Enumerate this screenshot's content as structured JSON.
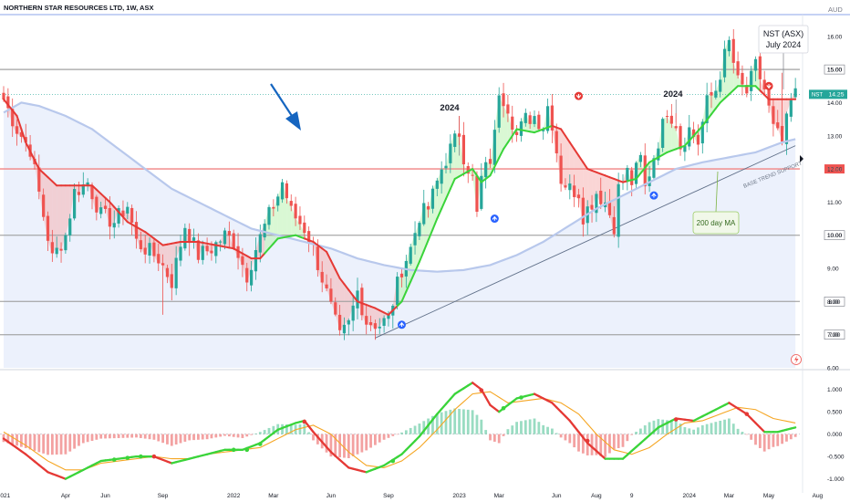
{
  "header": {
    "symbol_line": "NORTHERN STAR RESOURCES LTD, 1W, ASX",
    "currency": "AUD"
  },
  "price_axis": {
    "ticks": [
      "16.00",
      "15.00",
      "14.00",
      "13.00",
      "12.00",
      "11.00",
      "10.00",
      "9.00",
      "8.00",
      "7.00",
      "6.00"
    ],
    "last_price_tag": {
      "label": "NST",
      "value": "14.25",
      "price": 14.25
    }
  },
  "levels": [
    {
      "price": 15.0,
      "label": "15.00",
      "kind": "resistance"
    },
    {
      "price": 12.0,
      "label": "12.00",
      "kind": "support-red"
    },
    {
      "price": 10.0,
      "label": "10.00",
      "kind": "resistance"
    },
    {
      "price": 8.0,
      "label": "8.00",
      "kind": "resistance"
    },
    {
      "price": 7.0,
      "label": "7.00",
      "kind": "resistance"
    }
  ],
  "time_axis": {
    "ticks": [
      {
        "label": "2021",
        "t": 0
      },
      {
        "label": "Apr",
        "t": 14
      },
      {
        "label": "Jun",
        "t": 23
      },
      {
        "label": "Sep",
        "t": 36
      },
      {
        "label": "2022",
        "t": 52
      },
      {
        "label": "Mar",
        "t": 61
      },
      {
        "label": "Jun",
        "t": 74
      },
      {
        "label": "Sep",
        "t": 87
      },
      {
        "label": "2023",
        "t": 103
      },
      {
        "label": "Mar",
        "t": 112
      },
      {
        "label": "Jun",
        "t": 125
      },
      {
        "label": "Aug",
        "t": 134
      },
      {
        "label": "9",
        "t": 142
      },
      {
        "label": "2024",
        "t": 155
      },
      {
        "label": "Mar",
        "t": 164
      },
      {
        "label": "May",
        "t": 173
      },
      {
        "label": "Aug",
        "t": 184
      }
    ]
  },
  "annotations": {
    "title_box": {
      "line1": "NST (ASX)",
      "line2": "July 2024"
    },
    "year_label_1": "2024",
    "year_label_2": "2024",
    "ma_callout": "200 day MA",
    "trend_label": "BASE TREND SUPPORT"
  },
  "oscillator": {
    "ticks": [
      "1.000",
      "0.500",
      "0.000",
      "-0.500",
      "-1.000"
    ]
  },
  "colors": {
    "up": "#26a69a",
    "down": "#ef5350",
    "ma_fast_down": "#e53935",
    "ma_fast_up": "#3ad43a",
    "ma_slow": "#b8c8ec",
    "level_line": "#9e9e9e",
    "support_line": "#f28b8b",
    "osc_fast": "#e53935",
    "osc_signal": "#f5a623",
    "arrow_blue": "#1565c0"
  },
  "chart_data": {
    "type": "candlestick",
    "interval": "1W",
    "ylim": [
      6.0,
      16.6
    ],
    "osc_ylim": [
      -1.15,
      1.3
    ],
    "anchors": [
      [
        0,
        14.1
      ],
      [
        3,
        13.2
      ],
      [
        6,
        12.6
      ],
      [
        9,
        10.6
      ],
      [
        11,
        9.3
      ],
      [
        14,
        10.0
      ],
      [
        16,
        11.3
      ],
      [
        19,
        11.6
      ],
      [
        22,
        10.6
      ],
      [
        25,
        10.4
      ],
      [
        28,
        10.9
      ],
      [
        30,
        9.8
      ],
      [
        33,
        9.5
      ],
      [
        35,
        9.3
      ],
      [
        38,
        8.6
      ],
      [
        41,
        10.3
      ],
      [
        44,
        9.4
      ],
      [
        47,
        9.6
      ],
      [
        50,
        10.0
      ],
      [
        52,
        9.8
      ],
      [
        55,
        8.8
      ],
      [
        57,
        9.6
      ],
      [
        60,
        10.6
      ],
      [
        62,
        11.2
      ],
      [
        63,
        11.6
      ],
      [
        65,
        10.7
      ],
      [
        68,
        10.2
      ],
      [
        70,
        9.6
      ],
      [
        72,
        8.7
      ],
      [
        74,
        7.8
      ],
      [
        76,
        6.9
      ],
      [
        78,
        7.3
      ],
      [
        80,
        8.3
      ],
      [
        82,
        7.4
      ],
      [
        85,
        7.3
      ],
      [
        87,
        7.5
      ],
      [
        89,
        8.5
      ],
      [
        90,
        9.0
      ],
      [
        92,
        9.6
      ],
      [
        94,
        10.6
      ],
      [
        96,
        10.8
      ],
      [
        99,
        12.0
      ],
      [
        101,
        12.6
      ],
      [
        103,
        13.1
      ],
      [
        104,
        12.4
      ],
      [
        106,
        11.7
      ],
      [
        107,
        10.6
      ],
      [
        108,
        11.7
      ],
      [
        110,
        12.3
      ],
      [
        111,
        13.0
      ],
      [
        112,
        14.4
      ],
      [
        114,
        13.9
      ],
      [
        116,
        13.0
      ],
      [
        118,
        13.5
      ],
      [
        120,
        13.6
      ],
      [
        122,
        13.3
      ],
      [
        123,
        13.9
      ],
      [
        124,
        13.4
      ],
      [
        126,
        11.7
      ],
      [
        128,
        11.4
      ],
      [
        130,
        11.3
      ],
      [
        131,
        10.6
      ],
      [
        133,
        11.0
      ],
      [
        134,
        11.3
      ],
      [
        136,
        11.0
      ],
      [
        138,
        10.3
      ],
      [
        139,
        11.4
      ],
      [
        141,
        11.9
      ],
      [
        142,
        11.6
      ],
      [
        144,
        12.3
      ],
      [
        145,
        11.4
      ],
      [
        147,
        12.4
      ],
      [
        149,
        13.3
      ],
      [
        150,
        13.8
      ],
      [
        152,
        13.4
      ],
      [
        153,
        12.7
      ],
      [
        155,
        13.2
      ],
      [
        157,
        12.8
      ],
      [
        159,
        14.0
      ],
      [
        161,
        14.4
      ],
      [
        163,
        15.4
      ],
      [
        164,
        15.8
      ],
      [
        166,
        14.6
      ],
      [
        168,
        14.3
      ],
      [
        170,
        15.1
      ],
      [
        172,
        14.4
      ],
      [
        174,
        13.2
      ],
      [
        176,
        12.8
      ],
      [
        178,
        14.0
      ],
      [
        179,
        14.25
      ]
    ],
    "ma_fast": [
      [
        0,
        14.1
      ],
      [
        3,
        13.6
      ],
      [
        5,
        12.8
      ],
      [
        8,
        12.0
      ],
      [
        12,
        11.5
      ],
      [
        16,
        11.5
      ],
      [
        20,
        11.5
      ],
      [
        24,
        11.0
      ],
      [
        28,
        10.4
      ],
      [
        32,
        10.1
      ],
      [
        36,
        9.7
      ],
      [
        40,
        9.8
      ],
      [
        44,
        9.8
      ],
      [
        48,
        9.7
      ],
      [
        52,
        9.6
      ],
      [
        56,
        9.3
      ],
      [
        58,
        9.3
      ],
      [
        62,
        9.9
      ],
      [
        66,
        10.0
      ],
      [
        70,
        9.8
      ],
      [
        73,
        9.5
      ],
      [
        76,
        8.7
      ],
      [
        80,
        8.0
      ],
      [
        84,
        7.8
      ],
      [
        87,
        7.6
      ],
      [
        90,
        8.0
      ],
      [
        94,
        9.2
      ],
      [
        98,
        10.5
      ],
      [
        102,
        11.7
      ],
      [
        106,
        12.0
      ],
      [
        108,
        11.6
      ],
      [
        110,
        11.8
      ],
      [
        113,
        12.6
      ],
      [
        116,
        13.2
      ],
      [
        120,
        13.1
      ],
      [
        124,
        13.3
      ],
      [
        126,
        13.2
      ],
      [
        129,
        12.6
      ],
      [
        132,
        12.0
      ],
      [
        136,
        11.8
      ],
      [
        140,
        11.6
      ],
      [
        143,
        11.7
      ],
      [
        146,
        12.2
      ],
      [
        150,
        12.5
      ],
      [
        154,
        12.7
      ],
      [
        158,
        13.3
      ],
      [
        162,
        14.0
      ],
      [
        166,
        14.5
      ],
      [
        170,
        14.5
      ],
      [
        173,
        14.1
      ],
      [
        176,
        14.1
      ],
      [
        179,
        14.1
      ]
    ],
    "ma_fast_down_ranges": [
      [
        0,
        58
      ],
      [
        68,
        88
      ],
      [
        124,
        140
      ],
      [
        171,
        179
      ]
    ],
    "ma_slow": [
      [
        0,
        13.7
      ],
      [
        4,
        14.0
      ],
      [
        8,
        13.9
      ],
      [
        14,
        13.6
      ],
      [
        20,
        13.2
      ],
      [
        26,
        12.6
      ],
      [
        32,
        12.0
      ],
      [
        38,
        11.4
      ],
      [
        44,
        11.0
      ],
      [
        50,
        10.6
      ],
      [
        56,
        10.2
      ],
      [
        62,
        10.0
      ],
      [
        68,
        9.8
      ],
      [
        74,
        9.6
      ],
      [
        80,
        9.3
      ],
      [
        86,
        9.1
      ],
      [
        92,
        8.95
      ],
      [
        98,
        8.9
      ],
      [
        104,
        8.95
      ],
      [
        110,
        9.1
      ],
      [
        116,
        9.4
      ],
      [
        122,
        9.8
      ],
      [
        128,
        10.3
      ],
      [
        134,
        10.8
      ],
      [
        140,
        11.2
      ],
      [
        146,
        11.6
      ],
      [
        152,
        12.0
      ],
      [
        158,
        12.2
      ],
      [
        164,
        12.35
      ],
      [
        170,
        12.5
      ],
      [
        176,
        12.8
      ],
      [
        179,
        12.9
      ]
    ],
    "signals": [
      {
        "t": 90,
        "dir": "up",
        "price": 7.3
      },
      {
        "t": 111,
        "dir": "up",
        "price": 10.5
      },
      {
        "t": 130,
        "dir": "down",
        "price": 14.2
      },
      {
        "t": 147,
        "dir": "up",
        "price": 11.2
      },
      {
        "t": 173,
        "dir": "down",
        "price": 14.5
      }
    ],
    "oscillator_fast": [
      [
        0,
        -0.1
      ],
      [
        5,
        -0.45
      ],
      [
        10,
        -0.85
      ],
      [
        14,
        -1.0
      ],
      [
        18,
        -0.8
      ],
      [
        22,
        -0.6
      ],
      [
        26,
        -0.55
      ],
      [
        30,
        -0.5
      ],
      [
        34,
        -0.5
      ],
      [
        38,
        -0.65
      ],
      [
        42,
        -0.55
      ],
      [
        46,
        -0.45
      ],
      [
        50,
        -0.35
      ],
      [
        54,
        -0.35
      ],
      [
        58,
        -0.2
      ],
      [
        62,
        0.1
      ],
      [
        66,
        0.25
      ],
      [
        68,
        0.3
      ],
      [
        70,
        0.05
      ],
      [
        74,
        -0.4
      ],
      [
        78,
        -0.75
      ],
      [
        82,
        -0.85
      ],
      [
        86,
        -0.7
      ],
      [
        90,
        -0.45
      ],
      [
        94,
        -0.05
      ],
      [
        98,
        0.45
      ],
      [
        102,
        0.9
      ],
      [
        106,
        1.15
      ],
      [
        108,
        1.0
      ],
      [
        110,
        0.65
      ],
      [
        112,
        0.5
      ],
      [
        116,
        0.8
      ],
      [
        120,
        0.9
      ],
      [
        124,
        0.7
      ],
      [
        128,
        0.3
      ],
      [
        132,
        -0.2
      ],
      [
        136,
        -0.55
      ],
      [
        140,
        -0.55
      ],
      [
        144,
        -0.2
      ],
      [
        148,
        0.15
      ],
      [
        152,
        0.35
      ],
      [
        156,
        0.3
      ],
      [
        160,
        0.5
      ],
      [
        164,
        0.7
      ],
      [
        168,
        0.45
      ],
      [
        172,
        0.05
      ],
      [
        175,
        0.05
      ],
      [
        179,
        0.15
      ]
    ],
    "oscillator_signal": [
      [
        0,
        0.05
      ],
      [
        5,
        -0.25
      ],
      [
        10,
        -0.6
      ],
      [
        14,
        -0.8
      ],
      [
        18,
        -0.8
      ],
      [
        22,
        -0.65
      ],
      [
        26,
        -0.6
      ],
      [
        30,
        -0.55
      ],
      [
        34,
        -0.5
      ],
      [
        38,
        -0.55
      ],
      [
        42,
        -0.55
      ],
      [
        46,
        -0.45
      ],
      [
        50,
        -0.4
      ],
      [
        54,
        -0.35
      ],
      [
        58,
        -0.3
      ],
      [
        62,
        -0.1
      ],
      [
        66,
        0.1
      ],
      [
        70,
        0.2
      ],
      [
        74,
        0.0
      ],
      [
        78,
        -0.4
      ],
      [
        82,
        -0.7
      ],
      [
        86,
        -0.75
      ],
      [
        90,
        -0.6
      ],
      [
        94,
        -0.3
      ],
      [
        98,
        0.1
      ],
      [
        102,
        0.55
      ],
      [
        106,
        0.9
      ],
      [
        110,
        0.95
      ],
      [
        114,
        0.7
      ],
      [
        118,
        0.75
      ],
      [
        122,
        0.8
      ],
      [
        126,
        0.7
      ],
      [
        130,
        0.45
      ],
      [
        134,
        0.0
      ],
      [
        138,
        -0.35
      ],
      [
        142,
        -0.45
      ],
      [
        146,
        -0.3
      ],
      [
        150,
        0.0
      ],
      [
        154,
        0.25
      ],
      [
        158,
        0.3
      ],
      [
        162,
        0.45
      ],
      [
        166,
        0.6
      ],
      [
        170,
        0.55
      ],
      [
        174,
        0.35
      ],
      [
        179,
        0.25
      ]
    ],
    "oscillator_dots": [
      {
        "t": 25,
        "v": -0.57
      },
      {
        "t": 28,
        "v": -0.53
      },
      {
        "t": 31,
        "v": -0.5
      },
      {
        "t": 34,
        "v": -0.5
      },
      {
        "t": 52,
        "v": -0.35
      },
      {
        "t": 55,
        "v": -0.35
      },
      {
        "t": 58,
        "v": -0.22
      },
      {
        "t": 68,
        "v": 0.28
      },
      {
        "t": 88,
        "v": -0.6
      },
      {
        "t": 108,
        "v": 0.98
      },
      {
        "t": 113,
        "v": 0.58
      },
      {
        "t": 117,
        "v": 0.82
      },
      {
        "t": 132,
        "v": -0.15
      },
      {
        "t": 152,
        "v": 0.33
      },
      {
        "t": 168,
        "v": 0.45
      }
    ]
  }
}
